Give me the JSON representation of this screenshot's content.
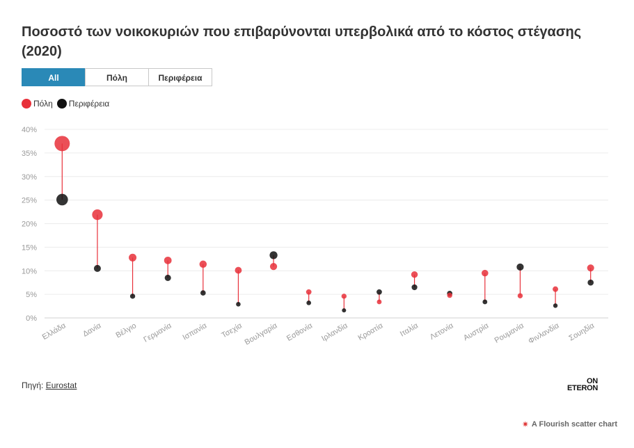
{
  "title": "Ποσοστό των νοικοκυριών που επιβαρύνονται υπερβολικά από το κόστος στέγασης (2020)",
  "tabs": [
    {
      "label": "All",
      "active": true
    },
    {
      "label": "Πόλη",
      "active": false
    },
    {
      "label": "Περιφέρεια",
      "active": false
    }
  ],
  "legend": [
    {
      "label": "Πόλη",
      "color": "#e8303a"
    },
    {
      "label": "Περιφέρεια",
      "color": "#111111"
    }
  ],
  "source": {
    "prefix": "Πηγή: ",
    "link": "Eurostat"
  },
  "logo": {
    "line1": "ON",
    "line2": "ETERON"
  },
  "credit": "A Flourish scatter chart",
  "chart_data": {
    "type": "scatter",
    "categories": [
      "Ελλάδα",
      "Δανία",
      "Βέλγιο",
      "Γερμανία",
      "Ισπανία",
      "Τσεχία",
      "Βουλγαρία",
      "Εσθονία",
      "Ιρλανδία",
      "Κροατία",
      "Ιταλία",
      "Λετονία",
      "Αυστρία",
      "Ρουμανία",
      "Φινλανδία",
      "Σουηδία"
    ],
    "series": [
      {
        "name": "Πόλη",
        "color": "#e8303a",
        "values": [
          37.0,
          21.9,
          12.8,
          12.2,
          11.4,
          10.1,
          10.9,
          5.5,
          4.6,
          3.4,
          9.2,
          4.8,
          9.5,
          4.7,
          6.1,
          10.6
        ]
      },
      {
        "name": "Περιφέρεια",
        "color": "#111111",
        "values": [
          25.1,
          10.5,
          4.6,
          8.5,
          5.3,
          2.9,
          13.3,
          3.2,
          1.6,
          5.5,
          6.5,
          5.2,
          3.4,
          10.8,
          2.6,
          7.5
        ]
      }
    ],
    "y_ticks": [
      "0%",
      "5%",
      "10%",
      "15%",
      "20%",
      "25%",
      "30%",
      "35%",
      "40%"
    ],
    "ylim": [
      0,
      40
    ],
    "grid": true,
    "connector_color": "#e8303a"
  }
}
